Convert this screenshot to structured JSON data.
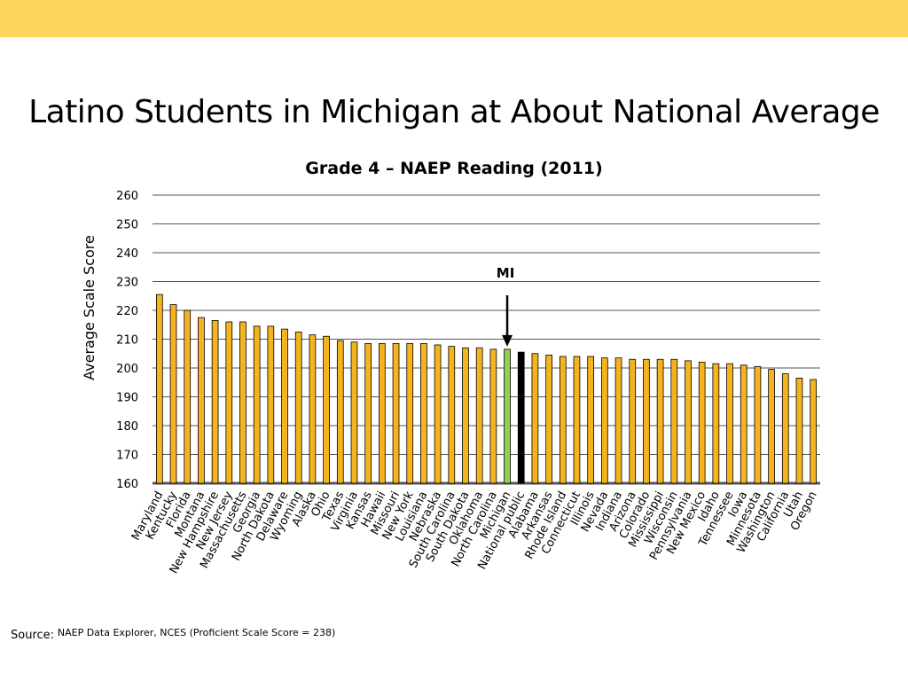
{
  "slide": {
    "title": "Latino Students in Michigan at About National Average",
    "source_label": "Source:",
    "source_text": "NAEP Data Explorer, NCES (Proficient Scale Score = 238)"
  },
  "colors": {
    "top_band": "#fdd55a",
    "bar_default": "#f5b41f",
    "bar_highlight": "#92d050",
    "bar_national": "#000000",
    "bar_outline": "#000000"
  },
  "chart_data": {
    "type": "bar",
    "title": "Grade 4 – NAEP Reading (2011)",
    "xlabel": "",
    "ylabel": "Average Scale Score",
    "ylim": [
      160,
      260
    ],
    "yticks": [
      160,
      170,
      180,
      190,
      200,
      210,
      220,
      230,
      240,
      250,
      260
    ],
    "grid": true,
    "legend": "none",
    "categories": [
      "Maryland",
      "Kentucky",
      "Florida",
      "Montana",
      "New Hampshire",
      "New Jersey",
      "Massachusetts",
      "Georgia",
      "North Dakota",
      "Delaware",
      "Wyoming",
      "Alaska",
      "Ohio",
      "Texas",
      "Virginia",
      "Kansas",
      "Hawaii",
      "Missouri",
      "New York",
      "Louisiana",
      "Nebraska",
      "South Carolina",
      "South Dakota",
      "Oklahoma",
      "North Carolina",
      "Michigan",
      "National public",
      "Alabama",
      "Arkansas",
      "Rhode Island",
      "Connecticut",
      "Illinois",
      "Nevada",
      "Indiana",
      "Arizona",
      "Colorado",
      "Mississippi",
      "Wisconsin",
      "Pennsylvania",
      "New Mexico",
      "Idaho",
      "Tennessee",
      "Iowa",
      "Minnesota",
      "Washington",
      "California",
      "Utah",
      "Oregon"
    ],
    "values": [
      225.5,
      222,
      220,
      217.5,
      216.5,
      216,
      216,
      214.5,
      214.5,
      213.5,
      212.5,
      211.5,
      211,
      209.5,
      209,
      208.5,
      208.5,
      208.5,
      208.5,
      208.5,
      208,
      207.5,
      207,
      207,
      206.5,
      206.5,
      205.5,
      205,
      204.5,
      204,
      204,
      204,
      203.5,
      203.5,
      203,
      203,
      203,
      203,
      202.5,
      202,
      201.5,
      201.5,
      201,
      200.5,
      199.5,
      198,
      196.5,
      196
    ],
    "highlight": "Michigan",
    "national": "National public",
    "annotations": [
      {
        "text": "MI",
        "target": "Michigan"
      }
    ]
  }
}
